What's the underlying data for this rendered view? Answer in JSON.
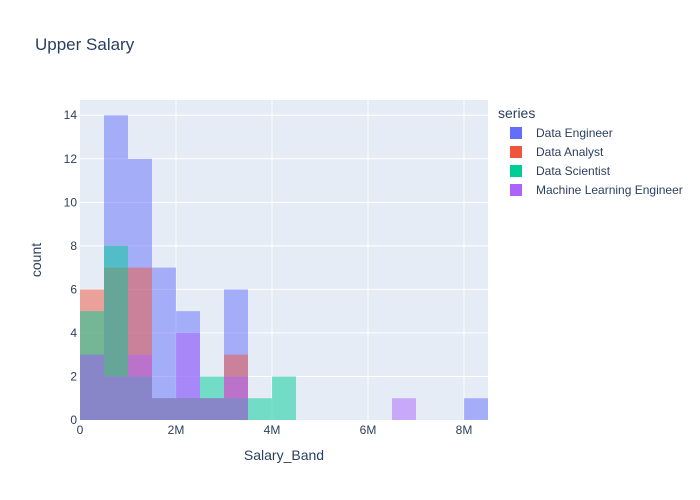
{
  "chart_data": {
    "type": "bar",
    "title": "Upper Salary",
    "xlabel": "Salary_Band",
    "ylabel": "count",
    "bin_width": 500000,
    "xlim": [
      0,
      8500000
    ],
    "ylim": [
      0,
      14.7
    ],
    "x_ticks": [
      {
        "value": 0,
        "label": "0"
      },
      {
        "value": 2000000,
        "label": "2M"
      },
      {
        "value": 4000000,
        "label": "4M"
      },
      {
        "value": 6000000,
        "label": "6M"
      },
      {
        "value": 8000000,
        "label": "8M"
      }
    ],
    "y_ticks": [
      0,
      2,
      4,
      6,
      8,
      10,
      12,
      14
    ],
    "grid": true,
    "barmode": "overlay",
    "legend": {
      "title": "series",
      "placement": "right"
    },
    "series": [
      {
        "name": "Data Engineer",
        "color": "#636efa",
        "bins": [
          {
            "x0": 0,
            "count": 3
          },
          {
            "x0": 500000,
            "count": 14
          },
          {
            "x0": 1000000,
            "count": 12
          },
          {
            "x0": 1500000,
            "count": 7
          },
          {
            "x0": 2000000,
            "count": 5
          },
          {
            "x0": 2500000,
            "count": 1
          },
          {
            "x0": 3000000,
            "count": 6
          },
          {
            "x0": 8000000,
            "count": 1
          }
        ]
      },
      {
        "name": "Data Analyst",
        "color": "#ef553b",
        "bins": [
          {
            "x0": 0,
            "count": 6
          },
          {
            "x0": 500000,
            "count": 7
          },
          {
            "x0": 1000000,
            "count": 7
          },
          {
            "x0": 1500000,
            "count": 1
          },
          {
            "x0": 2000000,
            "count": 1
          },
          {
            "x0": 2500000,
            "count": 1
          },
          {
            "x0": 3000000,
            "count": 3
          }
        ]
      },
      {
        "name": "Data Scientist",
        "color": "#00cc96",
        "bins": [
          {
            "x0": 0,
            "count": 5
          },
          {
            "x0": 500000,
            "count": 8
          },
          {
            "x0": 1000000,
            "count": 2
          },
          {
            "x0": 1500000,
            "count": 1
          },
          {
            "x0": 2000000,
            "count": 1
          },
          {
            "x0": 2500000,
            "count": 2
          },
          {
            "x0": 3000000,
            "count": 1
          },
          {
            "x0": 3500000,
            "count": 1
          },
          {
            "x0": 4000000,
            "count": 2
          }
        ]
      },
      {
        "name": "Machine Learning Engineer",
        "color": "#ab63fa",
        "bins": [
          {
            "x0": 0,
            "count": 3
          },
          {
            "x0": 500000,
            "count": 2
          },
          {
            "x0": 1000000,
            "count": 3
          },
          {
            "x0": 1500000,
            "count": 1
          },
          {
            "x0": 2000000,
            "count": 4
          },
          {
            "x0": 2500000,
            "count": 1
          },
          {
            "x0": 3000000,
            "count": 2
          },
          {
            "x0": 6500000,
            "count": 1
          }
        ]
      }
    ]
  }
}
